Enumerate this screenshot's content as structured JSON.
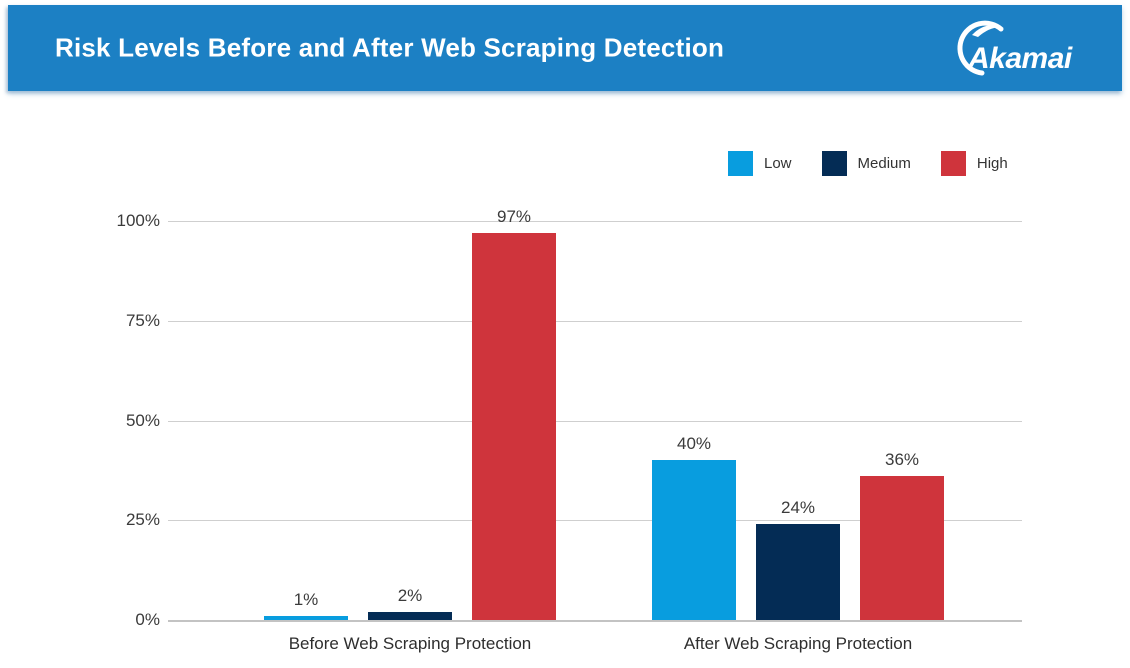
{
  "header": {
    "title": "Risk Levels Before and After Web Scraping Detection",
    "logo_text": "Akamai",
    "background_color": "#1C80C4"
  },
  "chart_data": {
    "type": "bar",
    "title": "Risk Levels Before and After Web Scraping Detection",
    "categories": [
      "Before Web Scraping Protection",
      "After Web Scraping Protection"
    ],
    "series": [
      {
        "name": "Low",
        "color": "#089DDF",
        "values": [
          1,
          40
        ],
        "labels": [
          "1%",
          "40%"
        ]
      },
      {
        "name": "Medium",
        "color": "#042C55",
        "values": [
          2,
          24
        ],
        "labels": [
          "2%",
          "24%"
        ]
      },
      {
        "name": "High",
        "color": "#CF343C",
        "values": [
          97,
          36
        ],
        "labels": [
          "97%",
          "36%"
        ]
      }
    ],
    "ylim": [
      0,
      100
    ],
    "yticks": [
      0,
      25,
      50,
      75,
      100
    ],
    "ytick_labels": [
      "0%",
      "25%",
      "50%",
      "75%",
      "100%"
    ],
    "grid": "horizontal",
    "legend_position": "top-right",
    "gridline_color": "#cfcfcf"
  }
}
